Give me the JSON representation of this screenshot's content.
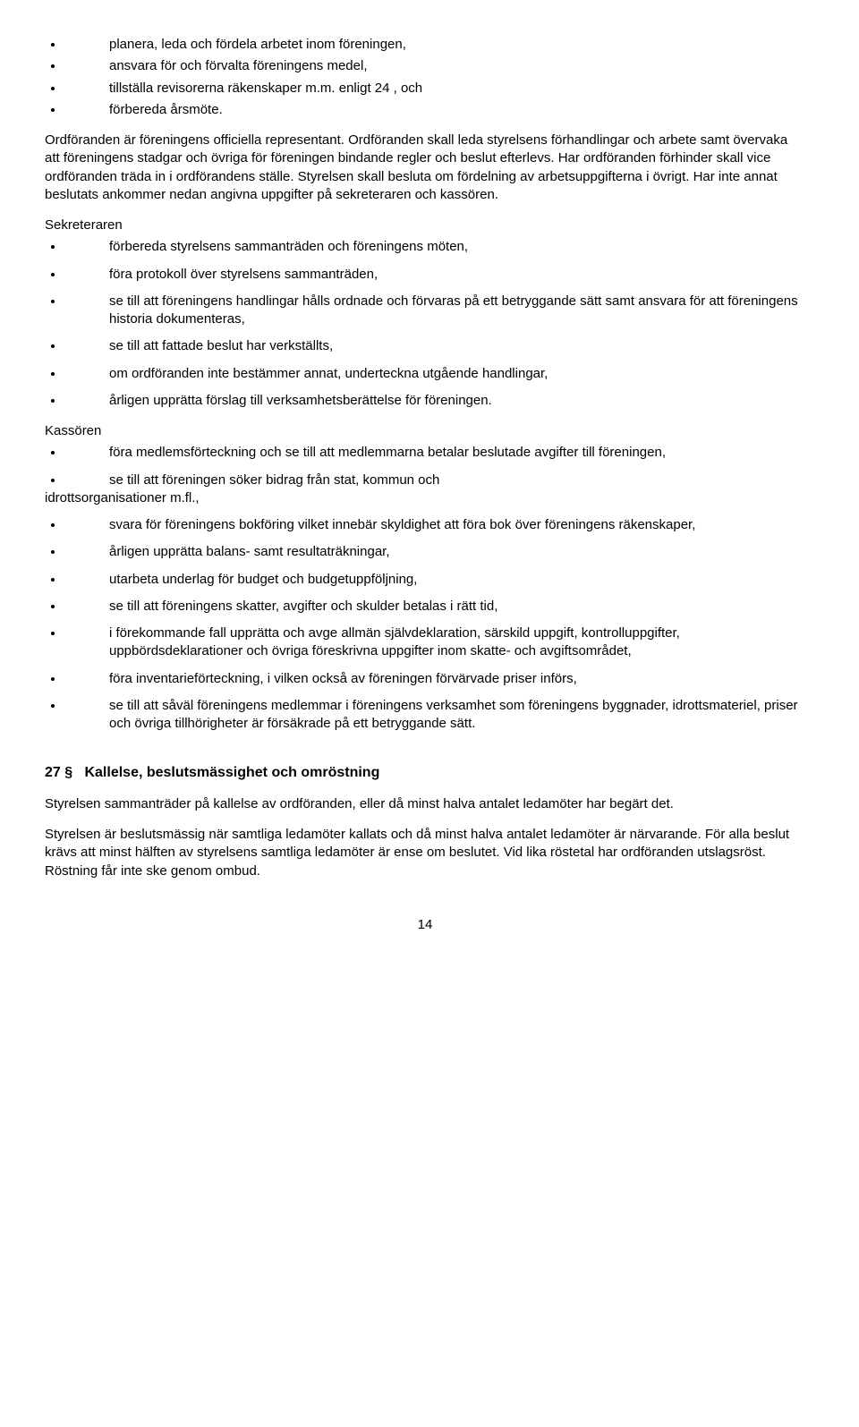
{
  "intro_list": [
    "planera, leda och fördela arbetet inom föreningen,",
    "ansvara för och förvalta föreningens medel,",
    "tillställa revisorerna räkenskaper m.m. enligt 24 , och",
    "förbereda årsmöte."
  ],
  "para_ordforande": "Ordföranden är föreningens officiella representant. Ordföranden skall leda styrelsens förhandlingar och arbete samt övervaka att föreningens stadgar och övriga för föreningen bindande regler och beslut efterlevs. Har ordföranden förhinder skall vice ordföranden träda in i ordförandens ställe. Styrelsen skall besluta om fördelning av arbetsuppgifterna i övrigt. Har inte annat beslutats ankommer nedan angivna uppgifter på sekreteraren och kassören.",
  "sekreteraren_label": "Sekreteraren",
  "sekreteraren_list": [
    "förbereda styrelsens sammanträden och föreningens möten,",
    "föra protokoll över styrelsens sammanträden,",
    "se till att föreningens handlingar hålls ordnade och förvaras på ett betryggande sätt samt ansvara för att föreningens historia dokumenteras,",
    "se till att fattade beslut har verkställts,",
    "om ordföranden inte bestämmer annat, underteckna utgående handlingar,",
    "årligen upprätta förslag till verksamhetsberättelse för föreningen."
  ],
  "kassoren_label": "Kassören",
  "kassoren_first": "föra medlemsförteckning och se till att medlemmarna betalar beslutade avgifter till föreningen,",
  "kassoren_second_pre": "se till att föreningen söker bidrag från stat, kommun och",
  "kassoren_second_post": "idrottsorganisationer m.fl.,",
  "kassoren_rest": [
    "svara för föreningens bokföring vilket innebär skyldighet att föra bok över föreningens räkenskaper,",
    "årligen upprätta balans- samt resultaträkningar,",
    "utarbeta underlag för budget och budgetuppföljning,",
    "se till att föreningens skatter, avgifter och skulder betalas i rätt tid,",
    "i förekommande fall upprätta och avge allmän självdeklaration, särskild uppgift, kontrolluppgifter, uppbördsdeklarationer och övriga föreskrivna uppgifter inom skatte- och avgiftsområdet,",
    "föra inventarieförteckning, i vilken också av föreningen förvärvade priser införs,",
    "se till att såväl föreningens medlemmar i föreningens verksamhet som föreningens byggnader, idrottsmateriel, priser och övriga tillhörigheter är försäkrade på ett betryggande sätt."
  ],
  "section27_heading": "27 §   Kallelse, beslutsmässighet och omröstning",
  "section27_p1": "Styrelsen sammanträder på kallelse av ordföranden, eller då minst halva antalet  ledamöter har begärt det.",
  "section27_p2": "Styrelsen är beslutsmässig när samtliga ledamöter kallats och då minst halva antalet ledamöter är närvarande. För alla beslut krävs att minst hälften av styrelsens samtliga ledamöter är ense om beslutet. Vid lika röstetal har ordföranden utslagsröst. Röstning får inte ske genom ombud.",
  "page_number": "14"
}
